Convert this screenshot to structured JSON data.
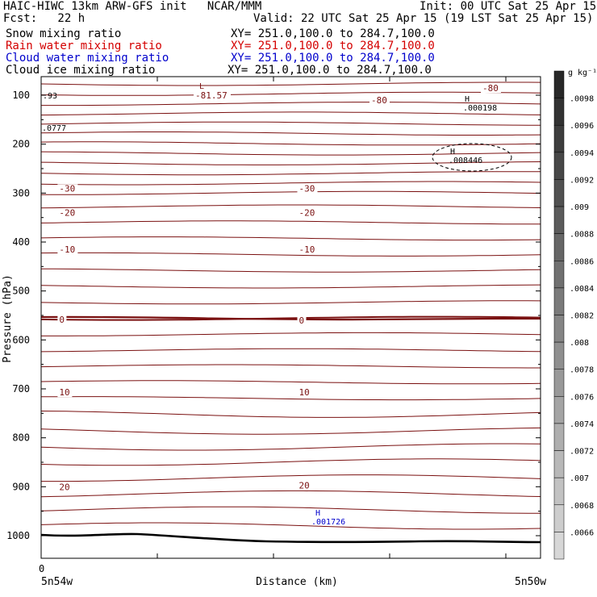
{
  "header": {
    "title_left": "HAIC-HIWC 13km ARW-GFS init   NCAR/MMM",
    "init": "Init: 00 UTC Sat 25 Apr 15",
    "fcst": "Fcst:   22 h",
    "valid": "Valid: 22 UTC Sat 25 Apr 15 (19 LST Sat 25 Apr 15)",
    "fields": [
      {
        "name": "Snow mixing ratio",
        "xy": "XY= 251.0,100.0 to 284.7,100.0",
        "color": "#000000"
      },
      {
        "name": "Rain water mixing ratio",
        "xy": "XY= 251.0,100.0 to 284.7,100.0",
        "color": "#d40000"
      },
      {
        "name": "Cloud water mixing ratio",
        "xy": "XY= 251.0,100.0 to 284.7,100.0",
        "color": "#0000cc"
      },
      {
        "name": "Cloud ice mixing ratio",
        "xy": "XY= 251.0,100.0 to 284.7,100.0",
        "color": "#000000"
      }
    ]
  },
  "chart_data": {
    "type": "contour",
    "ylabel": "Pressure (hPa)",
    "xlabel": "Distance (km)",
    "ylim": [
      1050,
      40
    ],
    "y_ticks": [
      100,
      200,
      300,
      400,
      500,
      600,
      700,
      800,
      900,
      1000
    ],
    "x_tick_label": "0",
    "x_left_label": "5n54w",
    "x_right_label": "5n50w",
    "contour_color": "#7a1010",
    "isotherm_labels": [
      {
        "value": "-80",
        "x": 0.4,
        "p": 120
      },
      {
        "value": "-80",
        "x": 0.62,
        "p": 80
      },
      {
        "value": "-81.57",
        "x": 0.78,
        "p": 100
      },
      {
        "value": "-30",
        "x": 0.02,
        "p": 290
      },
      {
        "value": "-30",
        "x": 0.5,
        "p": 290
      },
      {
        "value": "-20",
        "x": 0.02,
        "p": 340
      },
      {
        "value": "-20",
        "x": 0.5,
        "p": 340
      },
      {
        "value": "-10",
        "x": 0.02,
        "p": 415
      },
      {
        "value": "-10",
        "x": 0.5,
        "p": 415
      },
      {
        "value": "0",
        "x": 0.02,
        "p": 558
      },
      {
        "value": "0",
        "x": 0.5,
        "p": 560
      },
      {
        "value": "10",
        "x": 0.02,
        "p": 707
      },
      {
        "value": "10",
        "x": 0.5,
        "p": 707
      },
      {
        "value": "20",
        "x": 0.02,
        "p": 900
      },
      {
        "value": "20",
        "x": 0.5,
        "p": 897
      }
    ],
    "extrema": [
      {
        "symbol": "L",
        "value": "-81.57",
        "color": "#7a1010"
      },
      {
        "symbol": "H",
        "value": ".000198",
        "color": "#000000"
      },
      {
        "symbol": "H",
        "value": ".008446",
        "color": "#000000"
      },
      {
        "symbol": "H",
        "value": ".001726",
        "color": "#0000cc"
      }
    ],
    "edge_values": [
      ".93",
      ".0777"
    ],
    "colorbar": {
      "unit": "g kg⁻¹",
      "labels": [
        ".0098",
        ".0096",
        ".0094",
        ".0092",
        ".009",
        ".0088",
        ".0086",
        ".0084",
        ".0082",
        ".008",
        ".0078",
        ".0076",
        ".0074",
        ".0072",
        ".007",
        ".0068",
        ".0066"
      ]
    }
  }
}
